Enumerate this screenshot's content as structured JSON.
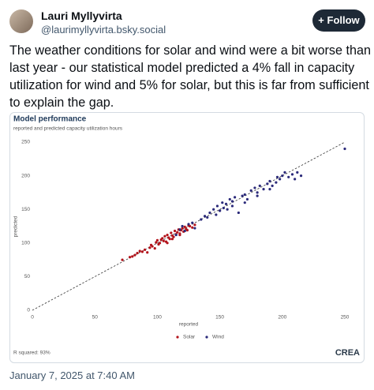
{
  "post": {
    "author": "Lauri Myllyvirta",
    "handle": "@laurimyllyvirta.bsky.social",
    "follow": "Follow",
    "text_lines": [
      "The weather conditions for solar and wind were a bit worse than",
      "last year - our statistical model predicted a 4% fall in capacity",
      "utilization for wind and 5% for solar, but this is far from sufficient",
      "to explain the gap."
    ],
    "timestamp": "January 7, 2025 at 7:40 AM"
  },
  "chart_data": {
    "type": "scatter",
    "title": "Model performance",
    "subtitle": "reported and predicted capacity utilization hours",
    "xlabel": "reported",
    "ylabel": "predicted",
    "annotation": "R squared: 93%",
    "source": "CREA",
    "xlim": [
      0,
      250
    ],
    "ylim": [
      0,
      250
    ],
    "xticks": [
      0,
      50,
      100,
      150,
      200,
      250
    ],
    "yticks": [
      0,
      50,
      100,
      150,
      200,
      250
    ],
    "grid": false,
    "series": [
      {
        "name": "Solar",
        "color": "#b3131b",
        "x": [
          72,
          78,
          80,
          82,
          84,
          86,
          88,
          90,
          92,
          94,
          95,
          96,
          98,
          99,
          100,
          101,
          102,
          103,
          104,
          105,
          106,
          107,
          108,
          109,
          110,
          111,
          112,
          113,
          114,
          115,
          116,
          117,
          118,
          119,
          120,
          121,
          122,
          123,
          124,
          125,
          126,
          128,
          130,
          108,
          112,
          118
        ],
        "values": [
          75,
          79,
          80,
          82,
          85,
          88,
          87,
          90,
          86,
          93,
          97,
          95,
          92,
          101,
          104,
          98,
          100,
          105,
          107,
          103,
          110,
          102,
          112,
          108,
          106,
          115,
          111,
          109,
          118,
          113,
          116,
          120,
          114,
          119,
          122,
          117,
          124,
          121,
          119,
          126,
          125,
          123,
          127,
          100,
          106,
          112
        ]
      },
      {
        "name": "Wind",
        "color": "#2b2a7a",
        "x": [
          115,
          118,
          120,
          122,
          125,
          128,
          130,
          135,
          138,
          140,
          142,
          145,
          147,
          148,
          150,
          152,
          153,
          155,
          156,
          158,
          160,
          162,
          165,
          168,
          170,
          172,
          175,
          178,
          180,
          182,
          185,
          188,
          190,
          192,
          195,
          196,
          198,
          200,
          202,
          205,
          208,
          210,
          212,
          215,
          160,
          150,
          170,
          190,
          250,
          180
        ],
        "values": [
          112,
          120,
          125,
          118,
          128,
          130,
          122,
          135,
          140,
          138,
          145,
          150,
          142,
          155,
          148,
          160,
          152,
          158,
          150,
          165,
          162,
          168,
          145,
          170,
          172,
          165,
          178,
          182,
          170,
          185,
          180,
          188,
          192,
          185,
          190,
          198,
          195,
          200,
          205,
          198,
          202,
          195,
          205,
          200,
          155,
          148,
          160,
          180,
          240,
          175
        ]
      }
    ]
  }
}
